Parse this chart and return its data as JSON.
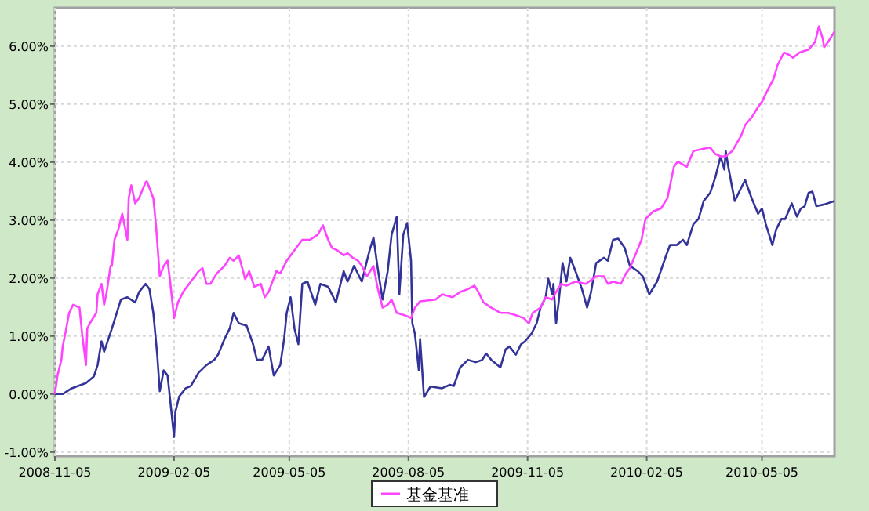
{
  "chart_data": {
    "type": "line",
    "xlim": [
      "2008-11-05",
      "2010-06-30"
    ],
    "ylim": [
      -1.07,
      6.66
    ],
    "xticks": [
      "2008-11-05",
      "2009-02-05",
      "2009-05-05",
      "2009-08-05",
      "2009-11-05",
      "2010-02-05",
      "2010-05-05"
    ],
    "yticks": [
      {
        "value": -1,
        "label": "-1.00%"
      },
      {
        "value": 0,
        "label": "0.00%"
      },
      {
        "value": 1,
        "label": "1.00%"
      },
      {
        "value": 2,
        "label": "2.00%"
      },
      {
        "value": 3,
        "label": "3.00%"
      },
      {
        "value": 4,
        "label": "4.00%"
      },
      {
        "value": 5,
        "label": "5.00%"
      },
      {
        "value": 6,
        "label": "6.00%"
      }
    ],
    "grid": true,
    "legend": "bottom",
    "marker": "none",
    "line_style": "solid",
    "series": [
      {
        "color": "#333399",
        "x": [
          "2008-11-05",
          "2008-11-11",
          "2008-11-18",
          "2008-11-29",
          "2008-12-05",
          "2008-12-08",
          "2008-12-11",
          "2008-12-13",
          "2008-12-19",
          "2008-12-26",
          "2008-12-31",
          "2009-01-06",
          "2009-01-09",
          "2009-01-14",
          "2009-01-17",
          "2009-01-20",
          "2009-01-23",
          "2009-01-25",
          "2009-01-28",
          "2009-01-31",
          "2009-02-03",
          "2009-02-05",
          "2009-02-06",
          "2009-02-09",
          "2009-02-14",
          "2009-02-18",
          "2009-02-24",
          "2009-03-02",
          "2009-03-08",
          "2009-03-11",
          "2009-03-16",
          "2009-03-20",
          "2009-03-23",
          "2009-03-27",
          "2009-04-02",
          "2009-04-07",
          "2009-04-10",
          "2009-04-14",
          "2009-04-19",
          "2009-04-23",
          "2009-04-28",
          "2009-05-01",
          "2009-05-03",
          "2009-05-06",
          "2009-05-09",
          "2009-05-12",
          "2009-05-15",
          "2009-05-19",
          "2009-05-25",
          "2009-05-29",
          "2009-06-04",
          "2009-06-10",
          "2009-06-16",
          "2009-06-19",
          "2009-06-24",
          "2009-06-30",
          "2009-07-06",
          "2009-07-09",
          "2009-07-12",
          "2009-07-16",
          "2009-07-20",
          "2009-07-23",
          "2009-07-27",
          "2009-07-29",
          "2009-08-01",
          "2009-08-04",
          "2009-08-07",
          "2009-08-08",
          "2009-08-10",
          "2009-08-13",
          "2009-08-14",
          "2009-08-17",
          "2009-08-22",
          "2009-08-31",
          "2009-09-06",
          "2009-09-09",
          "2009-09-14",
          "2009-09-20",
          "2009-09-26",
          "2009-10-01",
          "2009-10-04",
          "2009-10-08",
          "2009-10-15",
          "2009-10-19",
          "2009-10-22",
          "2009-10-27",
          "2009-10-31",
          "2009-11-03",
          "2009-11-08",
          "2009-11-12",
          "2009-11-15",
          "2009-11-19",
          "2009-11-21",
          "2009-11-24",
          "2009-11-25",
          "2009-11-27",
          "2009-11-29",
          "2009-12-02",
          "2009-12-05",
          "2009-12-08",
          "2009-12-12",
          "2009-12-17",
          "2009-12-21",
          "2009-12-24",
          "2009-12-28",
          "2010-01-03",
          "2010-01-06",
          "2010-01-10",
          "2010-01-14",
          "2010-01-19",
          "2010-01-23",
          "2010-01-29",
          "2010-02-02",
          "2010-02-07",
          "2010-02-13",
          "2010-02-20",
          "2010-02-23",
          "2010-02-28",
          "2010-03-05",
          "2010-03-08",
          "2010-03-13",
          "2010-03-17",
          "2010-03-21",
          "2010-03-26",
          "2010-03-30",
          "2010-04-03",
          "2010-04-06",
          "2010-04-07",
          "2010-04-09",
          "2010-04-12",
          "2010-04-14",
          "2010-04-19",
          "2010-04-22",
          "2010-04-27",
          "2010-05-02",
          "2010-05-05",
          "2010-05-08",
          "2010-05-13",
          "2010-05-16",
          "2010-05-20",
          "2010-05-23",
          "2010-05-28",
          "2010-06-01",
          "2010-06-04",
          "2010-06-07",
          "2010-06-10",
          "2010-06-13",
          "2010-06-16",
          "2010-06-22",
          "2010-06-30"
        ],
        "values": [
          0,
          0,
          0.1,
          0.19,
          0.3,
          0.5,
          0.91,
          0.73,
          1.13,
          1.63,
          1.67,
          1.58,
          1.76,
          1.9,
          1.81,
          1.4,
          0.68,
          0.05,
          0.41,
          0.32,
          -0.31,
          -0.74,
          -0.31,
          -0.04,
          0.1,
          0.14,
          0.37,
          0.5,
          0.59,
          0.68,
          0.95,
          1.13,
          1.4,
          1.22,
          1.18,
          0.86,
          0.59,
          0.59,
          0.82,
          0.32,
          0.5,
          0.95,
          1.4,
          1.67,
          1.13,
          0.86,
          1.9,
          1.94,
          1.54,
          1.9,
          1.85,
          1.58,
          2.12,
          1.94,
          2.21,
          1.94,
          2.48,
          2.7,
          2.21,
          1.63,
          2.12,
          2.75,
          3.06,
          1.72,
          2.75,
          2.95,
          2.3,
          1.22,
          1.04,
          0.41,
          0.95,
          -0.05,
          0.13,
          0.1,
          0.16,
          0.14,
          0.46,
          0.59,
          0.55,
          0.59,
          0.7,
          0.59,
          0.46,
          0.77,
          0.82,
          0.68,
          0.86,
          0.91,
          1.04,
          1.22,
          1.49,
          1.67,
          1.99,
          1.72,
          1.9,
          1.22,
          1.58,
          2.26,
          1.94,
          2.35,
          2.12,
          1.81,
          1.49,
          1.76,
          2.26,
          2.35,
          2.3,
          2.66,
          2.68,
          2.52,
          2.21,
          2.12,
          2.03,
          1.72,
          1.94,
          2.39,
          2.57,
          2.57,
          2.66,
          2.57,
          2.93,
          3.02,
          3.33,
          3.47,
          3.74,
          4.1,
          3.87,
          4.19,
          3.92,
          3.56,
          3.33,
          3.56,
          3.69,
          3.38,
          3.11,
          3.2,
          2.93,
          2.57,
          2.84,
          3.02,
          3.02,
          3.29,
          3.06,
          3.2,
          3.24,
          3.47,
          3.49,
          3.24,
          3.27,
          3.33
        ]
      },
      {
        "name": "基金基准",
        "color": "#ff44ff",
        "x": [
          "2008-11-05",
          "2008-11-07",
          "2008-11-10",
          "2008-11-11",
          "2008-11-13",
          "2008-11-16",
          "2008-11-18",
          "2008-11-19",
          "2008-11-24",
          "2008-11-26",
          "2008-11-29",
          "2008-11-30",
          "2008-12-02",
          "2008-12-07",
          "2008-12-08",
          "2008-12-11",
          "2008-12-13",
          "2008-12-15",
          "2008-12-18",
          "2008-12-19",
          "2008-12-21",
          "2008-12-24",
          "2008-12-27",
          "2008-12-31",
          "2009-01-01",
          "2009-01-03",
          "2009-01-06",
          "2009-01-09",
          "2009-01-14",
          "2009-01-15",
          "2009-01-20",
          "2009-01-22",
          "2009-01-25",
          "2009-01-28",
          "2009-01-31",
          "2009-02-02",
          "2009-02-05",
          "2009-02-08",
          "2009-02-12",
          "2009-02-18",
          "2009-02-24",
          "2009-02-27",
          "2009-03-02",
          "2009-03-05",
          "2009-03-10",
          "2009-03-16",
          "2009-03-20",
          "2009-03-23",
          "2009-03-27",
          "2009-04-01",
          "2009-04-04",
          "2009-04-08",
          "2009-04-13",
          "2009-04-16",
          "2009-04-19",
          "2009-04-25",
          "2009-04-28",
          "2009-05-03",
          "2009-05-09",
          "2009-05-15",
          "2009-05-21",
          "2009-05-27",
          "2009-05-31",
          "2009-06-04",
          "2009-06-07",
          "2009-06-11",
          "2009-06-16",
          "2009-06-19",
          "2009-06-23",
          "2009-06-27",
          "2009-06-30",
          "2009-07-04",
          "2009-07-09",
          "2009-07-12",
          "2009-07-16",
          "2009-07-20",
          "2009-07-23",
          "2009-07-27",
          "2009-08-02",
          "2009-08-07",
          "2009-08-10",
          "2009-08-14",
          "2009-08-26",
          "2009-08-31",
          "2009-09-08",
          "2009-09-14",
          "2009-09-20",
          "2009-09-25",
          "2009-09-28",
          "2009-10-02",
          "2009-10-08",
          "2009-10-15",
          "2009-10-21",
          "2009-10-27",
          "2009-11-02",
          "2009-11-06",
          "2009-11-09",
          "2009-11-15",
          "2009-11-19",
          "2009-11-24",
          "2009-11-27",
          "2009-12-01",
          "2009-12-05",
          "2009-12-12",
          "2009-12-20",
          "2009-12-28",
          "2010-01-03",
          "2010-01-06",
          "2010-01-10",
          "2010-01-16",
          "2010-01-20",
          "2010-01-23",
          "2010-01-27",
          "2010-02-01",
          "2010-02-04",
          "2010-02-10",
          "2010-02-16",
          "2010-02-21",
          "2010-02-26",
          "2010-03-01",
          "2010-03-08",
          "2010-03-13",
          "2010-03-21",
          "2010-03-26",
          "2010-03-30",
          "2010-04-03",
          "2010-04-07",
          "2010-04-12",
          "2010-04-19",
          "2010-04-22",
          "2010-04-27",
          "2010-05-02",
          "2010-05-05",
          "2010-05-10",
          "2010-05-14",
          "2010-05-17",
          "2010-05-22",
          "2010-05-26",
          "2010-05-29",
          "2010-06-03",
          "2010-06-10",
          "2010-06-15",
          "2010-06-18",
          "2010-06-21",
          "2010-06-22",
          "2010-06-25",
          "2010-06-30"
        ],
        "values": [
          0,
          0.32,
          0.59,
          0.82,
          1.04,
          1.4,
          1.49,
          1.54,
          1.49,
          1.04,
          0.5,
          1.13,
          1.22,
          1.4,
          1.72,
          1.9,
          1.54,
          1.76,
          2.21,
          2.21,
          2.66,
          2.84,
          3.11,
          2.66,
          3.38,
          3.6,
          3.29,
          3.38,
          3.65,
          3.67,
          3.38,
          2.93,
          2.03,
          2.21,
          2.3,
          1.94,
          1.31,
          1.58,
          1.76,
          1.94,
          2.12,
          2.17,
          1.9,
          1.9,
          2.08,
          2.21,
          2.35,
          2.3,
          2.39,
          1.98,
          2.12,
          1.85,
          1.9,
          1.67,
          1.76,
          2.12,
          2.08,
          2.3,
          2.48,
          2.66,
          2.66,
          2.75,
          2.91,
          2.66,
          2.52,
          2.48,
          2.39,
          2.43,
          2.35,
          2.3,
          2.21,
          2.03,
          2.21,
          1.85,
          1.49,
          1.54,
          1.63,
          1.4,
          1.36,
          1.31,
          1.49,
          1.6,
          1.63,
          1.72,
          1.67,
          1.76,
          1.81,
          1.87,
          1.76,
          1.58,
          1.49,
          1.4,
          1.4,
          1.36,
          1.31,
          1.22,
          1.4,
          1.49,
          1.67,
          1.63,
          1.76,
          1.9,
          1.87,
          1.94,
          1.9,
          2.03,
          2.03,
          1.9,
          1.94,
          1.9,
          2.08,
          2.17,
          2.39,
          2.66,
          3.02,
          3.15,
          3.2,
          3.38,
          3.92,
          4.01,
          3.92,
          4.19,
          4.23,
          4.25,
          4.14,
          4.1,
          4.1,
          4.19,
          4.46,
          4.64,
          4.77,
          4.95,
          5.04,
          5.27,
          5.44,
          5.67,
          5.89,
          5.85,
          5.8,
          5.89,
          5.94,
          6.07,
          6.34,
          6.12,
          5.98,
          6.07,
          6.25
        ]
      }
    ]
  }
}
